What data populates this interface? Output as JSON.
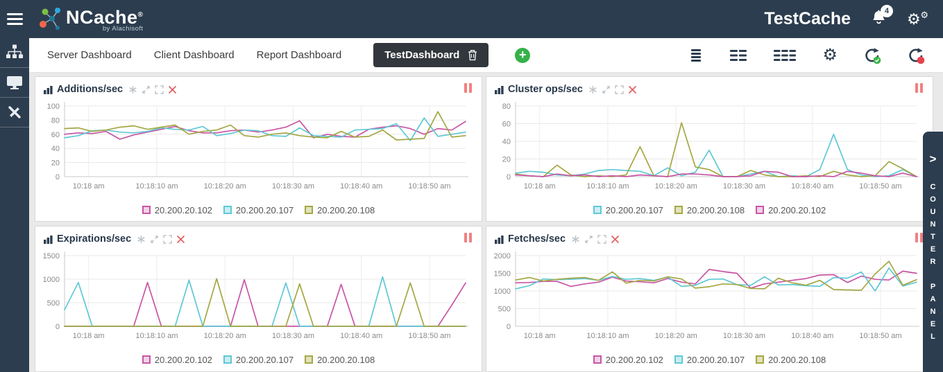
{
  "header": {
    "app_name": "NCache",
    "reg_mark": "®",
    "app_subtitle": "by Alachisoft",
    "cache_name": "TestCache",
    "notification_count": "4"
  },
  "icons": {
    "gear_glyph": "⚙",
    "plus_glyph": "+",
    "chevron_glyph": ">"
  },
  "tabs": {
    "items": [
      {
        "label": "Server Dashboard"
      },
      {
        "label": "Client Dashboard"
      },
      {
        "label": "Report Dashboard"
      }
    ],
    "active_label": "TestDashboard"
  },
  "counter_panel": {
    "label": "COUNTER PANEL"
  },
  "chart_data": [
    {
      "type": "line",
      "title": "Additions/sec",
      "xlabel": "",
      "ylabel": "",
      "ylim": [
        0,
        100
      ],
      "yticks": [
        0,
        20,
        40,
        60,
        80,
        100
      ],
      "xticks": [
        "10:18 am",
        "10:18:10 am",
        "10:18:20 am",
        "10:18:30 am",
        "10:18:40 am",
        "10:18:50 am"
      ],
      "legend": [
        {
          "label": "20.200.20.102",
          "color": "#c855a5",
          "fill": "#f0d2e7"
        },
        {
          "label": "20.200.20.107",
          "color": "#5fc8d5",
          "fill": "#caeef2"
        },
        {
          "label": "20.200.20.108",
          "color": "#a4a743",
          "fill": "#e2e2bd"
        }
      ],
      "series": [
        {
          "name": "20.200.20.102",
          "color": "#c855a5",
          "values": [
            60,
            62,
            61,
            64,
            53,
            59,
            63,
            67,
            71,
            65,
            62,
            62,
            65,
            66,
            63,
            66,
            70,
            79,
            55,
            60,
            57,
            56,
            67,
            70,
            72,
            68,
            60,
            68,
            66,
            78
          ]
        },
        {
          "name": "20.200.20.107",
          "color": "#5fc8d5",
          "values": [
            55,
            58,
            65,
            66,
            63,
            62,
            64,
            69,
            67,
            66,
            71,
            58,
            61,
            66,
            65,
            58,
            57,
            69,
            58,
            57,
            56,
            66,
            67,
            68,
            75,
            51,
            83,
            57,
            60,
            63
          ]
        },
        {
          "name": "20.200.20.108",
          "color": "#a4a743",
          "values": [
            68,
            69,
            64,
            66,
            70,
            72,
            67,
            70,
            73,
            60,
            64,
            66,
            73,
            58,
            56,
            60,
            62,
            58,
            56,
            55,
            64,
            56,
            57,
            66,
            52,
            53,
            54,
            92,
            56,
            58
          ]
        }
      ]
    },
    {
      "type": "line",
      "title": "Cluster ops/sec",
      "xlabel": "",
      "ylabel": "",
      "ylim": [
        0,
        80
      ],
      "yticks": [
        0,
        20,
        40,
        60,
        80
      ],
      "xticks": [
        "10:18 am",
        "10:18:10 am",
        "10:18:20 am",
        "10:18:30 am",
        "10:18:40 am",
        "10:18:50 am"
      ],
      "legend": [
        {
          "label": "20.200.20.107",
          "color": "#5fc8d5",
          "fill": "#caeef2"
        },
        {
          "label": "20.200.20.108",
          "color": "#a4a743",
          "fill": "#e2e2bd"
        },
        {
          "label": "20.200.20.102",
          "color": "#c855a5",
          "fill": "#f0d2e7"
        }
      ],
      "series": [
        {
          "name": "20.200.20.107",
          "color": "#5fc8d5",
          "values": [
            4,
            6,
            5,
            2,
            1,
            3,
            7,
            8,
            7,
            6,
            1,
            10,
            1,
            5,
            30,
            0,
            0,
            3,
            6,
            0,
            1,
            0,
            8,
            48,
            8,
            2,
            0,
            1,
            8,
            0
          ]
        },
        {
          "name": "20.200.20.108",
          "color": "#a4a743",
          "values": [
            3,
            1,
            0,
            13,
            2,
            0,
            1,
            0,
            2,
            34,
            1,
            0,
            61,
            11,
            8,
            0,
            0,
            7,
            2,
            0,
            0,
            1,
            0,
            6,
            2,
            0,
            1,
            17,
            9,
            0
          ]
        },
        {
          "name": "20.200.20.102",
          "color": "#c855a5",
          "values": [
            2,
            1,
            0,
            3,
            1,
            2,
            0,
            1,
            0,
            2,
            1,
            0,
            3,
            3,
            2,
            0,
            0,
            1,
            6,
            5,
            0,
            0,
            1,
            0,
            6,
            4,
            1,
            0,
            4,
            0
          ]
        }
      ]
    },
    {
      "type": "line",
      "title": "Expirations/sec",
      "xlabel": "",
      "ylabel": "",
      "ylim": [
        0,
        1500
      ],
      "yticks": [
        0,
        500,
        1000,
        1500
      ],
      "xticks": [
        "10:18 am",
        "10:18:10 am",
        "10:18:20 am",
        "10:18:30 am",
        "10:18:40 am",
        "10:18:50 am"
      ],
      "legend": [
        {
          "label": "20.200.20.102",
          "color": "#c855a5",
          "fill": "#f0d2e7"
        },
        {
          "label": "20.200.20.107",
          "color": "#5fc8d5",
          "fill": "#caeef2"
        },
        {
          "label": "20.200.20.108",
          "color": "#a4a743",
          "fill": "#e2e2bd"
        }
      ],
      "series": [
        {
          "name": "20.200.20.102",
          "color": "#c855a5",
          "values": [
            0,
            0,
            0,
            0,
            0,
            0,
            930,
            0,
            0,
            0,
            0,
            0,
            0,
            990,
            0,
            0,
            0,
            0,
            0,
            0,
            890,
            0,
            0,
            0,
            0,
            0,
            0,
            0,
            450,
            920
          ]
        },
        {
          "name": "20.200.20.107",
          "color": "#5fc8d5",
          "values": [
            350,
            930,
            0,
            0,
            0,
            0,
            0,
            0,
            0,
            980,
            0,
            0,
            0,
            0,
            0,
            0,
            920,
            0,
            0,
            0,
            0,
            0,
            0,
            1050,
            0,
            0,
            0,
            0,
            0,
            0
          ]
        },
        {
          "name": "20.200.20.108",
          "color": "#a4a743",
          "values": [
            0,
            0,
            0,
            0,
            0,
            0,
            0,
            0,
            0,
            0,
            0,
            1010,
            0,
            0,
            0,
            0,
            0,
            900,
            0,
            0,
            0,
            0,
            0,
            0,
            0,
            920,
            0,
            0,
            0,
            0
          ]
        }
      ]
    },
    {
      "type": "line",
      "title": "Fetches/sec",
      "xlabel": "",
      "ylabel": "",
      "ylim": [
        0,
        2000
      ],
      "yticks": [
        0,
        500,
        1000,
        1500,
        2000
      ],
      "xticks": [
        "10:18 am",
        "10:18:10 am",
        "10:18:20 am",
        "10:18:30 am",
        "10:18:40 am",
        "10:18:50 am"
      ],
      "legend": [
        {
          "label": "20.200.20.102",
          "color": "#c855a5",
          "fill": "#f0d2e7"
        },
        {
          "label": "20.200.20.107",
          "color": "#5fc8d5",
          "fill": "#caeef2"
        },
        {
          "label": "20.200.20.108",
          "color": "#a4a743",
          "fill": "#e2e2bd"
        }
      ],
      "series": [
        {
          "name": "20.200.20.102",
          "color": "#c855a5",
          "values": [
            1230,
            1240,
            1270,
            1270,
            1130,
            1200,
            1250,
            1390,
            1280,
            1260,
            1230,
            1350,
            1250,
            1200,
            1610,
            1550,
            1500,
            1080,
            1200,
            1250,
            1300,
            1350,
            1450,
            1460,
            1240,
            1420,
            1330,
            1310,
            1560,
            1500
          ]
        },
        {
          "name": "20.200.20.107",
          "color": "#5fc8d5",
          "values": [
            1060,
            1150,
            1340,
            1320,
            1330,
            1350,
            1300,
            1410,
            1330,
            1350,
            1300,
            1390,
            1130,
            1160,
            1330,
            1340,
            1180,
            1160,
            1400,
            1170,
            1180,
            1150,
            1130,
            1380,
            1360,
            1540,
            1000,
            1650,
            1140,
            1250
          ]
        },
        {
          "name": "20.200.20.108",
          "color": "#a4a743",
          "values": [
            1310,
            1380,
            1280,
            1330,
            1360,
            1380,
            1300,
            1540,
            1220,
            1300,
            1280,
            1400,
            1340,
            1080,
            1120,
            1200,
            1180,
            1070,
            1060,
            1360,
            1230,
            1160,
            1300,
            1040,
            1030,
            1020,
            1480,
            1840,
            1160,
            1320
          ]
        }
      ]
    }
  ]
}
